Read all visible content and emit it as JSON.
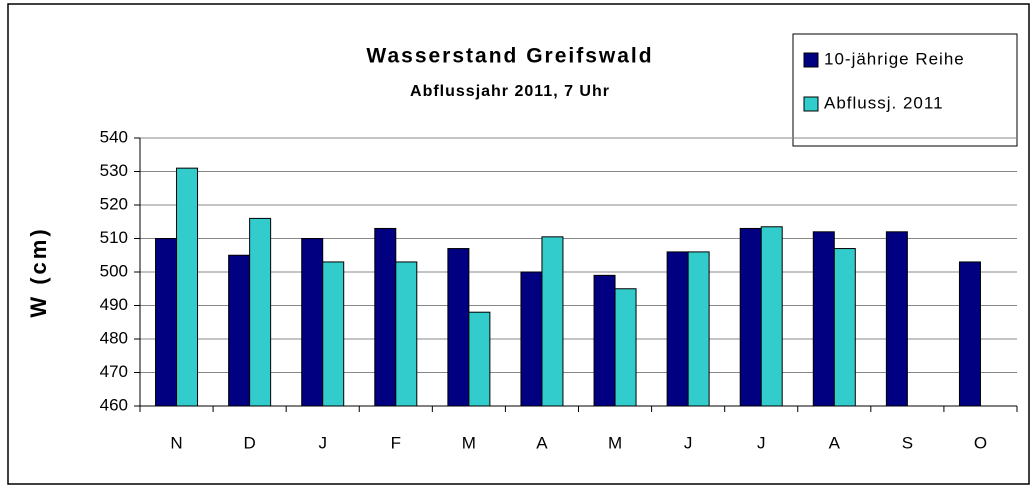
{
  "chart_data": {
    "type": "bar",
    "title": "Wasserstand Greifswald",
    "subtitle": "Abflussjahr 2011, 7 Uhr",
    "y_label": "W (cm)",
    "categories": [
      "N",
      "D",
      "J",
      "F",
      "M",
      "A",
      "M",
      "J",
      "J",
      "A",
      "S",
      "O"
    ],
    "series": [
      {
        "name": "10-jährige Reihe",
        "color": "#000080",
        "values": [
          510,
          505,
          510,
          513,
          507,
          500,
          499,
          506,
          513,
          512,
          512,
          503
        ]
      },
      {
        "name": "Abflussj. 2011",
        "color": "#33cccc",
        "values": [
          531,
          516,
          503,
          503,
          488,
          510.5,
          495,
          506,
          513.5,
          507,
          null,
          null
        ]
      }
    ],
    "ylim": [
      460,
      540
    ],
    "yticks": [
      460,
      470,
      480,
      490,
      500,
      510,
      520,
      530,
      540
    ],
    "grid": true,
    "legend": "top-right"
  }
}
